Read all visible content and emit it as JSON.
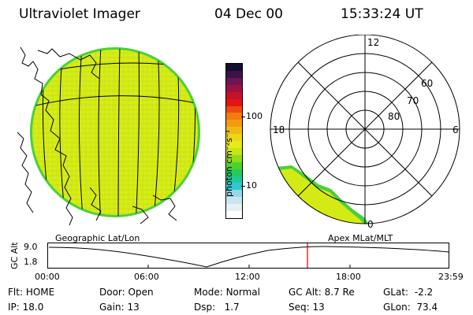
{
  "header": {
    "title": "Ultraviolet Imager",
    "date": "04 Dec 00",
    "time": "15:33:24 UT"
  },
  "left_panel": {
    "caption": "Geographic Lat/Lon"
  },
  "right_panel": {
    "caption": "Apex  MLat/MLT",
    "mlt_labels": [
      "12",
      "18",
      "6",
      "0"
    ],
    "mlat_labels": [
      "60",
      "70",
      "80"
    ]
  },
  "colorbar": {
    "unit_label": "photon cm⁻²s⁻¹",
    "ticks": [
      "100",
      "10"
    ],
    "scale": "log",
    "colors": [
      "#ffffff",
      "#e6f0f4",
      "#c8e6ef",
      "#9ad7e6",
      "#33c7d0",
      "#22c89a",
      "#26c95f",
      "#4dd12e",
      "#8edc1a",
      "#c7e414",
      "#e8e81a",
      "#ecd616",
      "#f2b914",
      "#f39a12",
      "#f27c10",
      "#ee4a10",
      "#e21414",
      "#c4122a",
      "#9c1042",
      "#6c1556",
      "#3c1248",
      "#12102a"
    ]
  },
  "altitude_plot": {
    "ylabel": "GC Alt",
    "yticks": [
      "9.0",
      "1.8"
    ],
    "xticks": [
      "00:00",
      "06:00",
      "12:00",
      "18:00",
      "23:59"
    ],
    "marker_color": "#d00000"
  },
  "status": {
    "col1": [
      {
        "label": "Flt:",
        "value": "HOME"
      },
      {
        "label": "IP:",
        "value": "18.0"
      }
    ],
    "col2": [
      {
        "label": "Door:",
        "value": "Open"
      },
      {
        "label": "Gain:",
        "value": "13"
      }
    ],
    "col3": [
      {
        "label": "Mode:",
        "value": "Normal"
      },
      {
        "label": "Dsp:",
        "value": "1.7"
      }
    ],
    "col4": [
      {
        "label": "GC Alt:",
        "value": "8.7 Re"
      },
      {
        "label": "Seq:",
        "value": "13"
      }
    ],
    "col5": [
      {
        "label": "GLat:",
        "value": "-2.2"
      },
      {
        "label": "GLon:",
        "value": "73.4"
      }
    ]
  }
}
